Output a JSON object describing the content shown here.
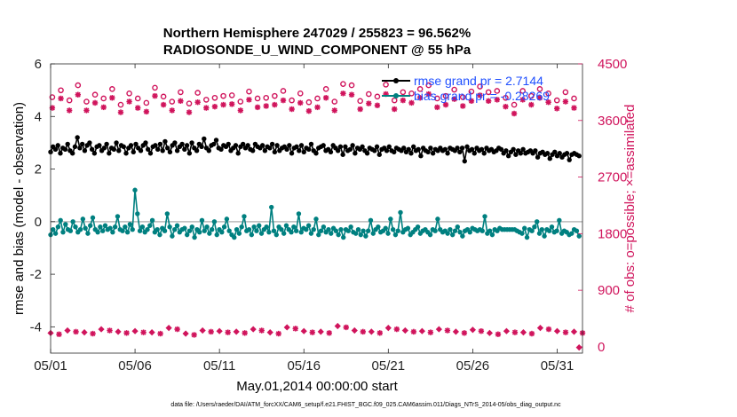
{
  "chart_data": {
    "type": "line",
    "title": "Northern Hemisphere 247029 / 255823 = 96.562%",
    "subtitle": "RADIOSONDE_U_WIND_COMPONENT @ 55 hPa",
    "xlabel": "May.01,2014 00:00:00 start",
    "ylabel_left": "rmse and bias (model - observation)",
    "ylabel_right": "# of obs: o=possible; ×=assimilated",
    "x_ticks": [
      "05/01",
      "05/06",
      "05/11",
      "05/16",
      "05/21",
      "05/26",
      "05/31"
    ],
    "y_left_ticks": [
      "-4",
      "-2",
      "0",
      "2",
      "4",
      "6"
    ],
    "y_right_ticks": [
      "0",
      "900",
      "1800",
      "2700",
      "3600",
      "4500"
    ],
    "ylim_left": [
      -5,
      6
    ],
    "ylim_right": [
      -100,
      4500
    ],
    "xlim": [
      0,
      31.5
    ],
    "legend": [
      "rmse grand pr = 2.7144",
      "bias grand pr = -0.28269"
    ],
    "footer": "data file: /Users/raeder/DAI/ATM_forcXX/CAM6_setup/f.e21.FHIST_BGC.f09_025.CAM6assim.011/Diags_NTrS_2014-05/obs_diag_output.nc",
    "colors": {
      "rmse": "#000000",
      "bias": "#008080",
      "obs": "#d0145c",
      "legend_text": "#1f4fff",
      "zero_line": "#bbbbbb"
    },
    "rmse": [
      2.65,
      2.85,
      2.75,
      2.9,
      2.6,
      2.8,
      2.75,
      2.95,
      2.7,
      2.6,
      2.85,
      3.2,
      2.8,
      2.95,
      2.7,
      2.9,
      3.0,
      2.75,
      2.6,
      2.85,
      2.9,
      2.7,
      2.8,
      2.95,
      2.6,
      2.8,
      2.75,
      3.0,
      2.7,
      2.9,
      2.85,
      2.6,
      2.8,
      2.9,
      2.65,
      2.95,
      2.8,
      2.7,
      2.9,
      3.0,
      2.75,
      2.6,
      2.85,
      2.9,
      2.75,
      2.95,
      2.7,
      3.05,
      2.8,
      2.65,
      2.9,
      3.0,
      2.7,
      2.85,
      2.95,
      2.75,
      2.9,
      2.6,
      3.0,
      2.8,
      2.7,
      2.95,
      2.85,
      3.15,
      2.8,
      2.7,
      2.9,
      2.95,
      3.1,
      2.8,
      2.75,
      2.9,
      2.85,
      2.95,
      2.7,
      2.8,
      2.9,
      2.6,
      2.85,
      2.95,
      2.8,
      2.9,
      2.75,
      2.7,
      2.95,
      2.85,
      2.8,
      2.9,
      2.7,
      2.85,
      2.8,
      2.95,
      2.65,
      2.9,
      2.7,
      2.8,
      2.85,
      2.75,
      2.9,
      2.6,
      2.8,
      2.85,
      2.7,
      2.9,
      2.65,
      2.8,
      2.75,
      2.95,
      2.7,
      2.6,
      2.8,
      2.85,
      2.9,
      2.7,
      2.75,
      2.65,
      2.9,
      2.8,
      2.7,
      2.85,
      2.55,
      2.85,
      2.7,
      2.75,
      2.9,
      2.6,
      2.8,
      2.75,
      2.85,
      2.7,
      2.6,
      2.8,
      2.75,
      2.7,
      2.85,
      2.55,
      2.75,
      2.8,
      2.7,
      2.85,
      2.7,
      2.65,
      2.8,
      2.75,
      2.7,
      2.8,
      2.65,
      2.75,
      2.6,
      2.85,
      2.7,
      2.75,
      2.5,
      2.8,
      2.7,
      2.65,
      2.8,
      2.6,
      2.75,
      2.7,
      2.8,
      2.7,
      2.75,
      2.6,
      2.8,
      2.75,
      2.7,
      2.8,
      2.65,
      2.8,
      2.3,
      2.85,
      2.7,
      2.75,
      2.6,
      2.8,
      2.7,
      2.75,
      2.6,
      2.8,
      2.7,
      2.75,
      2.65,
      2.7,
      2.8,
      2.75,
      2.6,
      2.7,
      2.5,
      2.65,
      2.75,
      2.55,
      2.7,
      2.6,
      2.75,
      2.6,
      2.65,
      2.7,
      2.6,
      2.7,
      2.45,
      2.6,
      2.65,
      2.55,
      2.6,
      2.4,
      2.55,
      2.65,
      2.5,
      2.6,
      2.45,
      2.55,
      2.6,
      2.35,
      2.55,
      2.6,
      2.55,
      2.5
    ],
    "bias": [
      -0.5,
      -0.3,
      -0.45,
      -0.2,
      0.05,
      -0.4,
      -0.1,
      -0.3,
      -0.35,
      0.0,
      -0.2,
      -0.4,
      -0.3,
      0.1,
      -0.25,
      -0.45,
      -0.15,
      0.15,
      -0.3,
      -0.4,
      -0.2,
      -0.35,
      -0.15,
      -0.3,
      -0.25,
      -0.4,
      -0.2,
      0.2,
      -0.3,
      -0.35,
      -0.2,
      -0.4,
      -0.1,
      -0.3,
      1.2,
      0.3,
      -0.35,
      -0.2,
      -0.4,
      -0.3,
      -0.15,
      0.05,
      -0.4,
      -0.3,
      -0.5,
      -0.25,
      -0.35,
      0.3,
      -0.2,
      -0.55,
      -0.3,
      -0.15,
      -0.4,
      -0.3,
      -0.25,
      -0.5,
      -0.35,
      -0.2,
      -0.6,
      -0.3,
      -0.4,
      0.05,
      -0.35,
      -0.2,
      -0.45,
      -0.3,
      0.0,
      -0.5,
      -0.3,
      -0.4,
      -0.2,
      0.1,
      -0.35,
      -0.5,
      -0.6,
      -0.3,
      -0.45,
      -0.2,
      0.2,
      -0.35,
      -0.3,
      -0.5,
      -0.2,
      -0.35,
      -0.15,
      -0.45,
      -0.3,
      -0.2,
      -0.4,
      0.55,
      -0.35,
      -0.5,
      -0.2,
      -0.3,
      -0.45,
      -0.15,
      -0.3,
      -0.4,
      -0.2,
      -0.35,
      0.3,
      -0.4,
      -0.25,
      -0.3,
      -0.15,
      -0.45,
      -0.3,
      0.1,
      -0.5,
      -0.35,
      -0.2,
      -0.4,
      -0.3,
      -0.45,
      -0.25,
      -0.35,
      -0.5,
      -0.3,
      -0.6,
      -0.3,
      -0.35,
      -0.2,
      -0.4,
      -0.45,
      -0.3,
      -0.5,
      -0.35,
      -0.55,
      -0.35,
      0.05,
      -0.45,
      -0.3,
      -0.2,
      -0.4,
      -0.35,
      -0.25,
      -0.45,
      0.1,
      -0.3,
      -0.5,
      -0.35,
      0.35,
      -0.4,
      -0.3,
      -0.25,
      -0.5,
      -0.4,
      -0.3,
      -0.2,
      -0.45,
      -0.35,
      -0.3,
      -0.4,
      -0.5,
      -0.3,
      -0.35,
      0.1,
      -0.3,
      -0.4,
      -0.35,
      -0.45,
      -0.3,
      -0.5,
      -0.35,
      -0.2,
      -0.4,
      -0.55,
      -0.35,
      -0.3,
      -0.4,
      -0.25,
      -0.3,
      -0.35,
      -0.3,
      -0.35,
      0.2,
      -0.45,
      -0.35,
      -0.5,
      -0.3,
      -0.35,
      -0.25,
      -0.3,
      -0.3,
      -0.3,
      -0.3,
      -0.3,
      -0.3,
      -0.35,
      -0.4,
      -0.45,
      -0.25,
      -0.6,
      -0.3,
      -0.35,
      -0.2,
      0.0,
      -0.45,
      -0.3,
      -0.55,
      -0.3,
      -0.35,
      -0.2,
      -0.4,
      -0.35,
      0.05,
      -0.45,
      -0.35,
      -0.4,
      -0.5,
      -0.45,
      -0.3,
      -0.35,
      -0.55
    ],
    "obs_possible_6h": [
      3970,
      4080,
      3920,
      4160,
      3900,
      4010,
      3950,
      4100,
      3850,
      4030,
      3950,
      3880,
      4120,
      3980,
      3900,
      4050,
      3870,
      4040,
      3930,
      3960,
      3990,
      4000,
      3900,
      4060,
      3950,
      3960,
      3990,
      4070,
      3920,
      4030,
      3890,
      3950,
      4100,
      3900,
      4180,
      4160,
      3910,
      4020,
      3980,
      4170,
      3920,
      4050,
      4030,
      4100,
      4160,
      3950,
      3990,
      4090,
      3970,
      4060,
      4140,
      4050,
      4070,
      3960,
      3850,
      4070,
      3990,
      4100,
      4030,
      3920,
      4050,
      3950
    ],
    "obs_assim_6h": [
      3800,
      3950,
      3760,
      4010,
      3760,
      3880,
      3810,
      3960,
      3730,
      3900,
      3800,
      3740,
      3990,
      3850,
      3760,
      3910,
      3730,
      3890,
      3800,
      3820,
      3850,
      3860,
      3760,
      3930,
      3810,
      3830,
      3850,
      3920,
      3780,
      3880,
      3750,
      3810,
      3960,
      3760,
      4030,
      4010,
      3780,
      3870,
      3840,
      4020,
      3780,
      3920,
      3880,
      3960,
      4020,
      3810,
      3850,
      3940,
      3830,
      3910,
      4000,
      3910,
      3930,
      3820,
      3710,
      3930,
      3850,
      3960,
      3890,
      3790,
      3900,
      3800
    ],
    "obs_possible_24h": [
      220,
      260,
      230,
      280,
      240,
      250,
      230,
      300,
      210,
      260,
      250,
      240,
      280,
      230,
      310,
      250,
      240,
      330,
      260,
      240,
      300,
      260,
      250,
      280,
      240,
      270,
      220,
      250,
      230,
      300,
      250,
      240
    ],
    "obs_assim_24h": [
      200,
      240,
      210,
      260,
      220,
      230,
      210,
      280,
      190,
      240,
      230,
      220,
      260,
      210,
      290,
      230,
      220,
      310,
      240,
      220,
      280,
      240,
      230,
      260,
      220,
      250,
      200,
      230,
      210,
      280,
      230,
      220
    ]
  }
}
